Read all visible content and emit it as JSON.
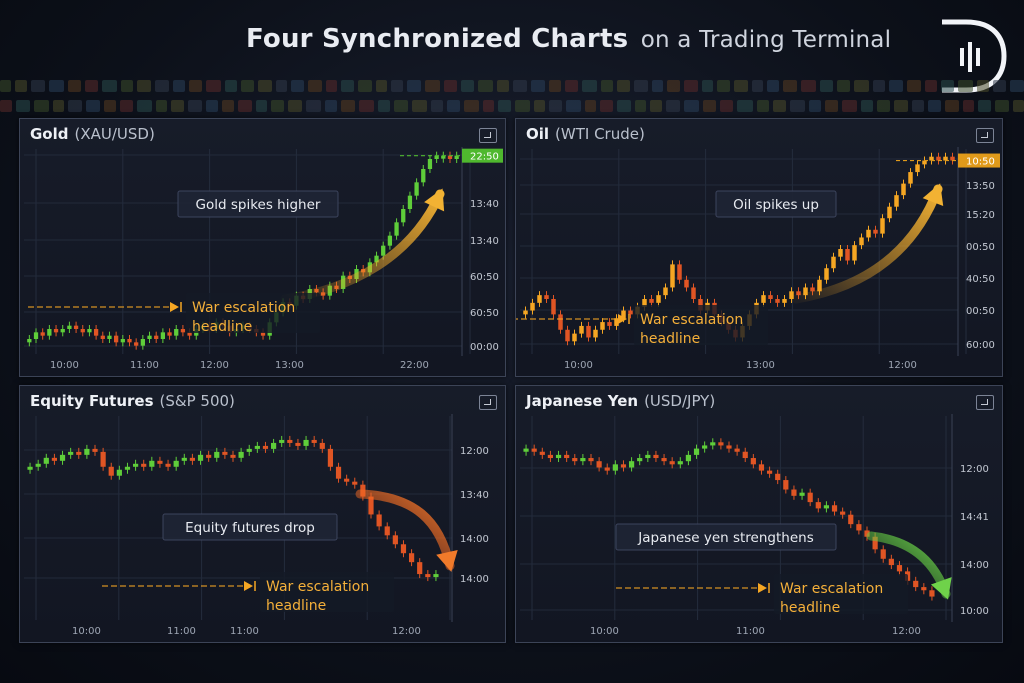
{
  "title": {
    "bold": "Four Synchronized Charts",
    "rest": "on a Trading Terminal"
  },
  "colors": {
    "up": "#5fce3a",
    "down": "#e05524",
    "orange_up": "#f5a623",
    "grid": "#263044",
    "axis_text": "#c3c8d2",
    "event_line": "#f5a623"
  },
  "chart_data": [
    {
      "type": "candlestick",
      "name": "Gold",
      "subtitle": "(XAU/USD)",
      "xticks": [
        "10:00",
        "11:00",
        "12:00",
        "13:00",
        "22:00"
      ],
      "yticks": [
        "22:50",
        "13:40",
        "13:40",
        "60:50",
        "60:50",
        "00:00"
      ],
      "current_label": "22:50",
      "callout": "Gold spikes higher",
      "headline": [
        "War escalation",
        "headline"
      ],
      "closes": [
        3,
        5,
        4,
        6,
        5,
        6,
        7,
        6,
        5,
        6,
        4,
        3,
        4,
        2,
        3,
        2,
        1,
        3,
        4,
        3,
        5,
        4,
        6,
        5,
        4,
        6,
        7,
        6,
        8,
        7,
        5,
        6,
        7,
        6,
        5,
        4,
        8,
        11,
        14,
        13,
        16,
        15,
        18,
        17,
        16,
        19,
        18,
        22,
        21,
        24,
        23,
        26,
        28,
        31,
        34,
        38,
        42,
        46,
        50,
        54,
        57,
        58,
        58,
        57,
        58
      ],
      "up_color": "#5fce3a",
      "down_color": "#e05524"
    },
    {
      "type": "candlestick",
      "name": "Oil",
      "subtitle": "(WTI Crude)",
      "xticks": [
        "10:00",
        "13:00",
        "12:00"
      ],
      "yticks": [
        "10:50",
        "13:50",
        "15:20",
        "00:50",
        "40:50",
        "00:50",
        "60:00"
      ],
      "current_label": "10:50",
      "callout": "Oil spikes up",
      "headline": [
        "War escalation",
        "headline"
      ],
      "closes": [
        10,
        12,
        14,
        13,
        9,
        5,
        2,
        4,
        6,
        3,
        5,
        7,
        6,
        8,
        10,
        9,
        11,
        13,
        12,
        14,
        16,
        22,
        18,
        16,
        13,
        10,
        12,
        9,
        7,
        5,
        3,
        6,
        9,
        12,
        14,
        13,
        12,
        13,
        15,
        14,
        16,
        15,
        18,
        21,
        24,
        26,
        23,
        27,
        29,
        31,
        30,
        34,
        37,
        40,
        43,
        46,
        48,
        49,
        50,
        49,
        50,
        49
      ],
      "up_color": "#f5a623",
      "down_color": "#e05524"
    },
    {
      "type": "candlestick",
      "name": "Equity Futures",
      "subtitle": "(S&P 500)",
      "xticks": [
        "10:00",
        "11:00",
        "11:00",
        "12:00"
      ],
      "yticks": [
        "12:00",
        "13:40",
        "14:00",
        "14:00"
      ],
      "callout": "Equity futures drop",
      "headline": [
        "War escalation",
        "headline"
      ],
      "closes": [
        40,
        41,
        43,
        42,
        44,
        45,
        44,
        46,
        45,
        40,
        37,
        39,
        40,
        41,
        40,
        42,
        41,
        40,
        42,
        43,
        42,
        44,
        43,
        45,
        44,
        43,
        45,
        46,
        47,
        46,
        48,
        49,
        48,
        47,
        49,
        48,
        46,
        40,
        36,
        35,
        34,
        30,
        24,
        20,
        17,
        14,
        11,
        8,
        4,
        3,
        4
      ],
      "up_color": "#5fce3a",
      "down_color": "#e05524"
    },
    {
      "type": "candlestick",
      "name": "Japanese Yen",
      "subtitle": "(USD/JPY)",
      "xticks": [
        "10:00",
        "11:00",
        "12:00"
      ],
      "yticks": [
        "12:00",
        "14:41",
        "14:00",
        "10:00"
      ],
      "callout": "Japanese yen strengthens",
      "headline": [
        "War escalation",
        "headline"
      ],
      "closes": [
        50,
        49,
        48,
        47,
        48,
        47,
        46,
        47,
        46,
        44,
        43,
        45,
        44,
        46,
        47,
        48,
        47,
        46,
        45,
        46,
        48,
        50,
        51,
        52,
        51,
        50,
        49,
        47,
        45,
        43,
        42,
        40,
        37,
        35,
        36,
        33,
        31,
        32,
        30,
        29,
        26,
        24,
        22,
        18,
        15,
        13,
        11,
        8,
        6,
        5,
        3
      ],
      "up_color": "#5fce3a",
      "down_color": "#e05524"
    }
  ]
}
